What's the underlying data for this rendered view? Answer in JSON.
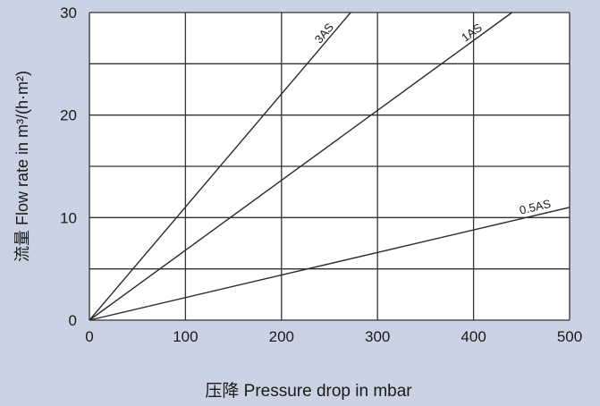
{
  "chart_data": {
    "type": "line",
    "xlabel": "压降  Pressure drop in mbar",
    "ylabel": "流量 Flow rate in m³/(h·m²)",
    "xlim": [
      0,
      500
    ],
    "ylim": [
      0,
      30
    ],
    "x_ticks": [
      "0",
      "100",
      "200",
      "300",
      "400",
      "500"
    ],
    "y_ticks": [
      "0",
      "10",
      "20",
      "30"
    ],
    "grid": true,
    "colors": {
      "background": "#c9d3e4",
      "plot_area": "#ffffff",
      "line": "#2a2a2a",
      "grid": "#333333"
    },
    "series": [
      {
        "name": "3AS",
        "x": [
          0,
          272
        ],
        "y": [
          0,
          30
        ]
      },
      {
        "name": "1AS",
        "x": [
          0,
          440
        ],
        "y": [
          0,
          30
        ]
      },
      {
        "name": "0.5AS",
        "x": [
          0,
          500
        ],
        "y": [
          0,
          11
        ]
      }
    ]
  }
}
